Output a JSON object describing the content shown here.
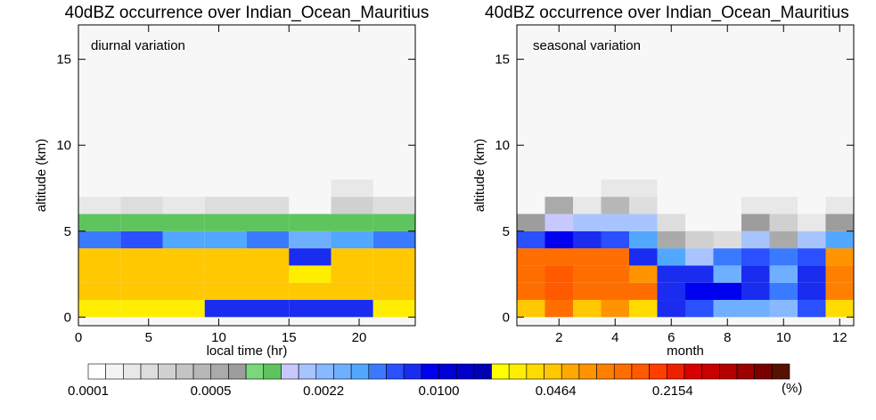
{
  "colors": {
    "panel_bg": "#f7f7f7",
    "palette": [
      "#ffffff",
      "#f4f4f4",
      "#e8e8e8",
      "#dddddd",
      "#d0d0d0",
      "#c4c4c4",
      "#b7b7b7",
      "#aaaaaa",
      "#9d9d9d",
      "#79d879",
      "#5ec45e",
      "#c8c8ff",
      "#a8c4ff",
      "#88b8ff",
      "#6eb0ff",
      "#52a8ff",
      "#3a7aff",
      "#2a50ff",
      "#1a2cf0",
      "#0000f0",
      "#0000d8",
      "#0000c8",
      "#0000b4",
      "#ffff00",
      "#ffee00",
      "#ffdc00",
      "#ffc800",
      "#ffa800",
      "#ff9400",
      "#ff8000",
      "#ff6e00",
      "#ff5a00",
      "#ff3e00",
      "#ee2000",
      "#d80000",
      "#c80000",
      "#b40000",
      "#9c0000",
      "#7a0000",
      "#581000"
    ]
  },
  "chart_data": [
    {
      "type": "heatmap",
      "title": "40dBZ occurrence over Indian_Ocean_Mauritius",
      "annotation": "diurnal variation",
      "xlabel": "local time (hr)",
      "ylabel": "altitude (km)",
      "xlim": [
        0,
        24
      ],
      "ylim": [
        -0.5,
        17
      ],
      "xticks": [
        0,
        5,
        10,
        15,
        20
      ],
      "yticks": [
        0,
        5,
        10,
        15
      ],
      "x_edges": [
        0,
        3,
        6,
        9,
        12,
        15,
        18,
        21,
        24
      ],
      "y_edges": [
        0,
        1,
        2,
        3,
        4,
        5,
        6,
        7,
        8
      ],
      "value_unit": "%",
      "values": [
        [
          0.028,
          0.028,
          0.028,
          0.0074,
          0.0074,
          0.0074,
          0.0074,
          0.028
        ],
        [
          0.044,
          0.044,
          0.04,
          0.04,
          0.044,
          0.04,
          0.04,
          0.04
        ],
        [
          0.04,
          0.044,
          0.04,
          0.04,
          0.04,
          0.028,
          0.04,
          0.04
        ],
        [
          0.04,
          0.044,
          0.04,
          0.04,
          0.044,
          0.0074,
          0.04,
          0.04
        ],
        [
          0.0048,
          0.0052,
          0.0035,
          0.0035,
          0.0045,
          0.0028,
          0.0035,
          0.0045
        ],
        [
          0.0012,
          0.0012,
          0.001,
          0.0012,
          0.0012,
          0.001,
          0.0012,
          0.0012
        ],
        [
          0.00017,
          0.00023,
          0.00017,
          0.00023,
          0.00023,
          null,
          0.0003,
          0.00023
        ],
        [
          null,
          null,
          null,
          null,
          null,
          null,
          0.00017,
          null
        ]
      ]
    },
    {
      "type": "heatmap",
      "title": "40dBZ occurrence over Indian_Ocean_Mauritius",
      "annotation": "seasonal variation",
      "xlabel": "month",
      "ylabel": "altitude (km)",
      "xlim": [
        0.5,
        12.5
      ],
      "ylim": [
        -0.5,
        17
      ],
      "xticks": [
        2,
        4,
        6,
        8,
        10,
        12
      ],
      "yticks": [
        0,
        5,
        10,
        15
      ],
      "x_edges": [
        0.5,
        1.5,
        2.5,
        3.5,
        4.5,
        5.5,
        6.5,
        7.5,
        8.5,
        9.5,
        10.5,
        11.5,
        12.5
      ],
      "y_edges": [
        0,
        1,
        2,
        3,
        4,
        5,
        6,
        7,
        8
      ],
      "value_unit": "%",
      "values": [
        [
          0.046,
          0.1,
          0.05,
          0.07,
          0.032,
          0.0074,
          0.0055,
          0.0028,
          0.0028,
          0.0025,
          0.0055,
          0.032
        ],
        [
          0.12,
          0.14,
          0.12,
          0.12,
          0.1,
          0.0074,
          0.0085,
          0.0085,
          0.0074,
          0.005,
          0.0074,
          0.08
        ],
        [
          0.12,
          0.14,
          0.12,
          0.12,
          0.07,
          0.0074,
          0.0074,
          0.0028,
          0.0074,
          0.0028,
          0.0074,
          0.08
        ],
        [
          0.1,
          0.12,
          0.1,
          0.1,
          0.0074,
          0.0035,
          0.0018,
          0.005,
          0.0055,
          0.005,
          0.0055,
          0.07
        ],
        [
          0.0055,
          0.0085,
          0.0074,
          0.0055,
          0.0035,
          0.00055,
          0.0003,
          0.00023,
          0.0018,
          0.00055,
          0.0018,
          0.0035
        ],
        [
          0.00075,
          0.0013,
          0.0018,
          0.0018,
          0.0018,
          0.00023,
          null,
          null,
          0.00075,
          0.0003,
          0.00017,
          0.00075
        ],
        [
          null,
          0.00055,
          0.00017,
          0.0004,
          0.00023,
          null,
          null,
          null,
          0.00017,
          0.00017,
          null,
          0.00017
        ],
        [
          null,
          null,
          null,
          0.00017,
          0.00017,
          null,
          null,
          null,
          null,
          null,
          null,
          null
        ]
      ]
    }
  ],
  "colorbar": {
    "min": 0.0001,
    "max": 1.0,
    "scale": "log",
    "n_colors": 40,
    "tick_values": [
      0.0001,
      0.0005,
      0.0022,
      0.01,
      0.0464,
      0.2154
    ],
    "tick_labels": [
      "0.0001",
      "0.0005",
      "0.0022",
      "0.0100",
      "0.0464",
      "0.2154"
    ],
    "unit_label": "(%)"
  }
}
